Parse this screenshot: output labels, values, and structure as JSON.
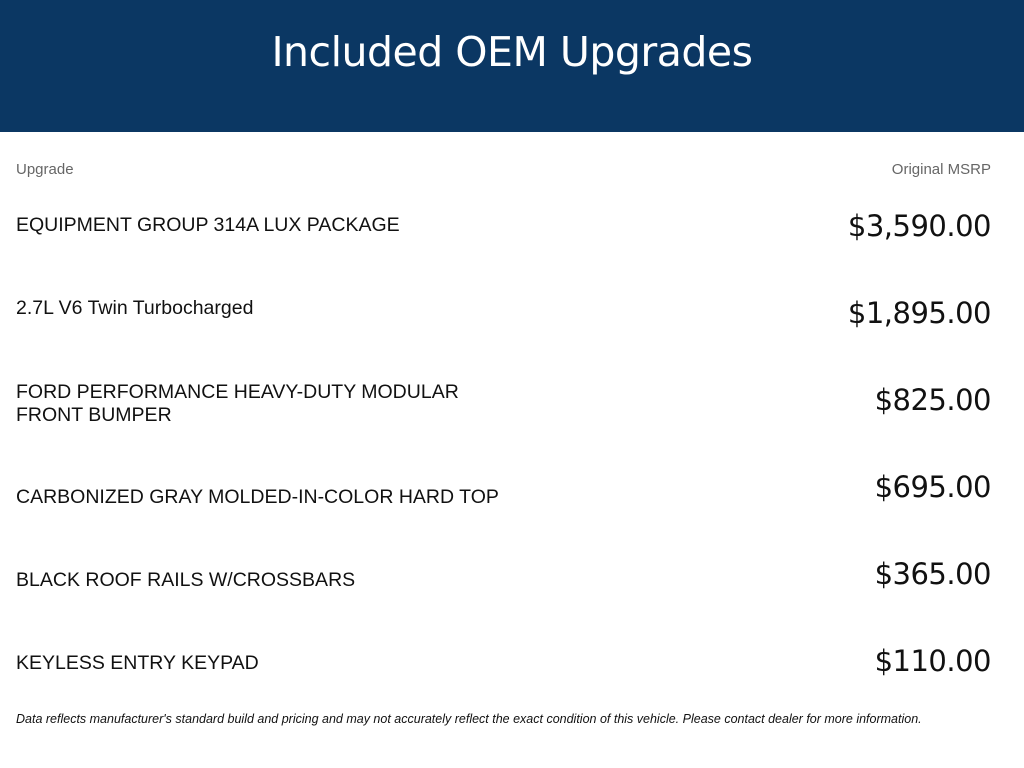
{
  "header": {
    "title": "Included OEM Upgrades",
    "background_color": "#0b3763"
  },
  "table": {
    "columns": {
      "upgrade": "Upgrade",
      "msrp": "Original MSRP"
    },
    "rows": [
      {
        "name": "EQUIPMENT GROUP 314A LUX PACKAGE",
        "price": "$3,590.00"
      },
      {
        "name": "2.7L V6 Twin Turbocharged",
        "price": "$1,895.00"
      },
      {
        "name": "FORD PERFORMANCE HEAVY-DUTY MODULAR FRONT BUMPER",
        "price": "$825.00"
      },
      {
        "name": "CARBONIZED GRAY MOLDED-IN-COLOR HARD TOP",
        "price": "$695.00"
      },
      {
        "name": "BLACK ROOF RAILS W/CROSSBARS",
        "price": "$365.00"
      },
      {
        "name": "KEYLESS ENTRY KEYPAD",
        "price": "$110.00"
      }
    ]
  },
  "disclaimer": "Data reflects manufacturer's standard build and pricing and may not accurately reflect the exact condition of this vehicle. Please contact dealer for more information."
}
